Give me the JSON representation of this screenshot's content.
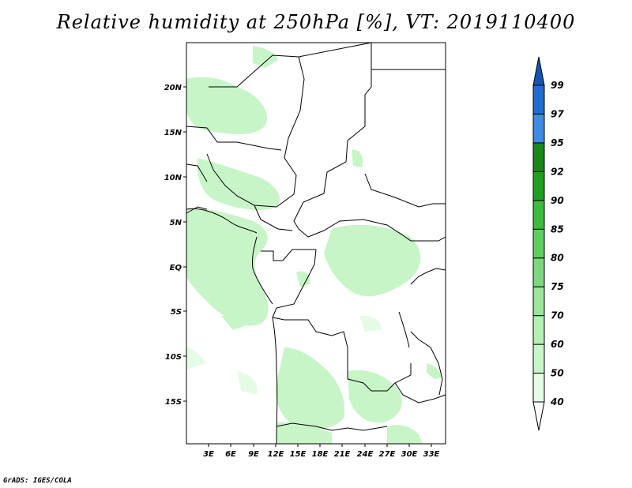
{
  "title": "Relative humidity at 250hPa [%], VT: 2019110400",
  "footer": "GrADS: IGES/COLA",
  "map": {
    "lat_ticks": [
      "20N",
      "15N",
      "10N",
      "5N",
      "EQ",
      "5S",
      "10S",
      "15S"
    ],
    "lon_ticks": [
      "3E",
      "6E",
      "9E",
      "12E",
      "15E",
      "18E",
      "21E",
      "24E",
      "27E",
      "30E",
      "33E"
    ]
  },
  "colorbar": {
    "levels": [
      "40",
      "50",
      "60",
      "70",
      "75",
      "80",
      "85",
      "90",
      "92",
      "95",
      "97",
      "99"
    ],
    "colors": [
      "#ffffff",
      "#e6fbe6",
      "#c8f5c8",
      "#b3f0b3",
      "#9ae59a",
      "#7dd87d",
      "#5bd05b",
      "#3cbc3c",
      "#1ea21e",
      "#168a16",
      "#3c8ce6",
      "#1e6ed2",
      "#1455b4"
    ]
  }
}
